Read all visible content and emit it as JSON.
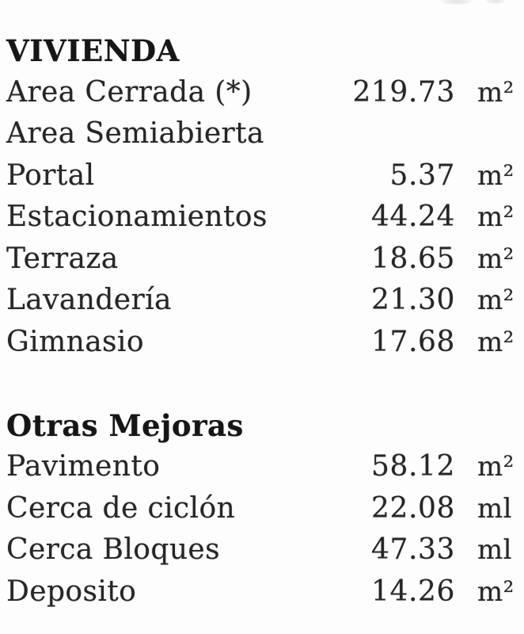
{
  "doc": {
    "colors": {
      "ink": "#262626",
      "heading_ink": "#161616",
      "paper": "#fdfdfd"
    },
    "sections": [
      {
        "title": "VIVIENDA",
        "rows": [
          {
            "label": "Area Cerrada (*)",
            "value": "219.73",
            "unit": "m²"
          },
          {
            "label": "Area Semiabierta",
            "value": "",
            "unit": ""
          },
          {
            "label": "Portal",
            "value": "5.37",
            "unit": "m²"
          },
          {
            "label": "Estacionamientos",
            "value": "44.24",
            "unit": "m²"
          },
          {
            "label": "Terraza",
            "value": "18.65",
            "unit": "m²"
          },
          {
            "label": "Lavandería",
            "value": "21.30",
            "unit": "m²"
          },
          {
            "label": "Gimnasio",
            "value": "17.68",
            "unit": "m²"
          }
        ]
      },
      {
        "title": "Otras Mejoras",
        "rows": [
          {
            "label": "Pavimento",
            "value": "58.12",
            "unit": "m²"
          },
          {
            "label": "Cerca de ciclón",
            "value": "22.08",
            "unit": "ml"
          },
          {
            "label": "Cerca Bloques",
            "value": "47.33",
            "unit": "ml"
          },
          {
            "label": "Deposito",
            "value": "14.26",
            "unit": "m²"
          }
        ]
      }
    ]
  }
}
